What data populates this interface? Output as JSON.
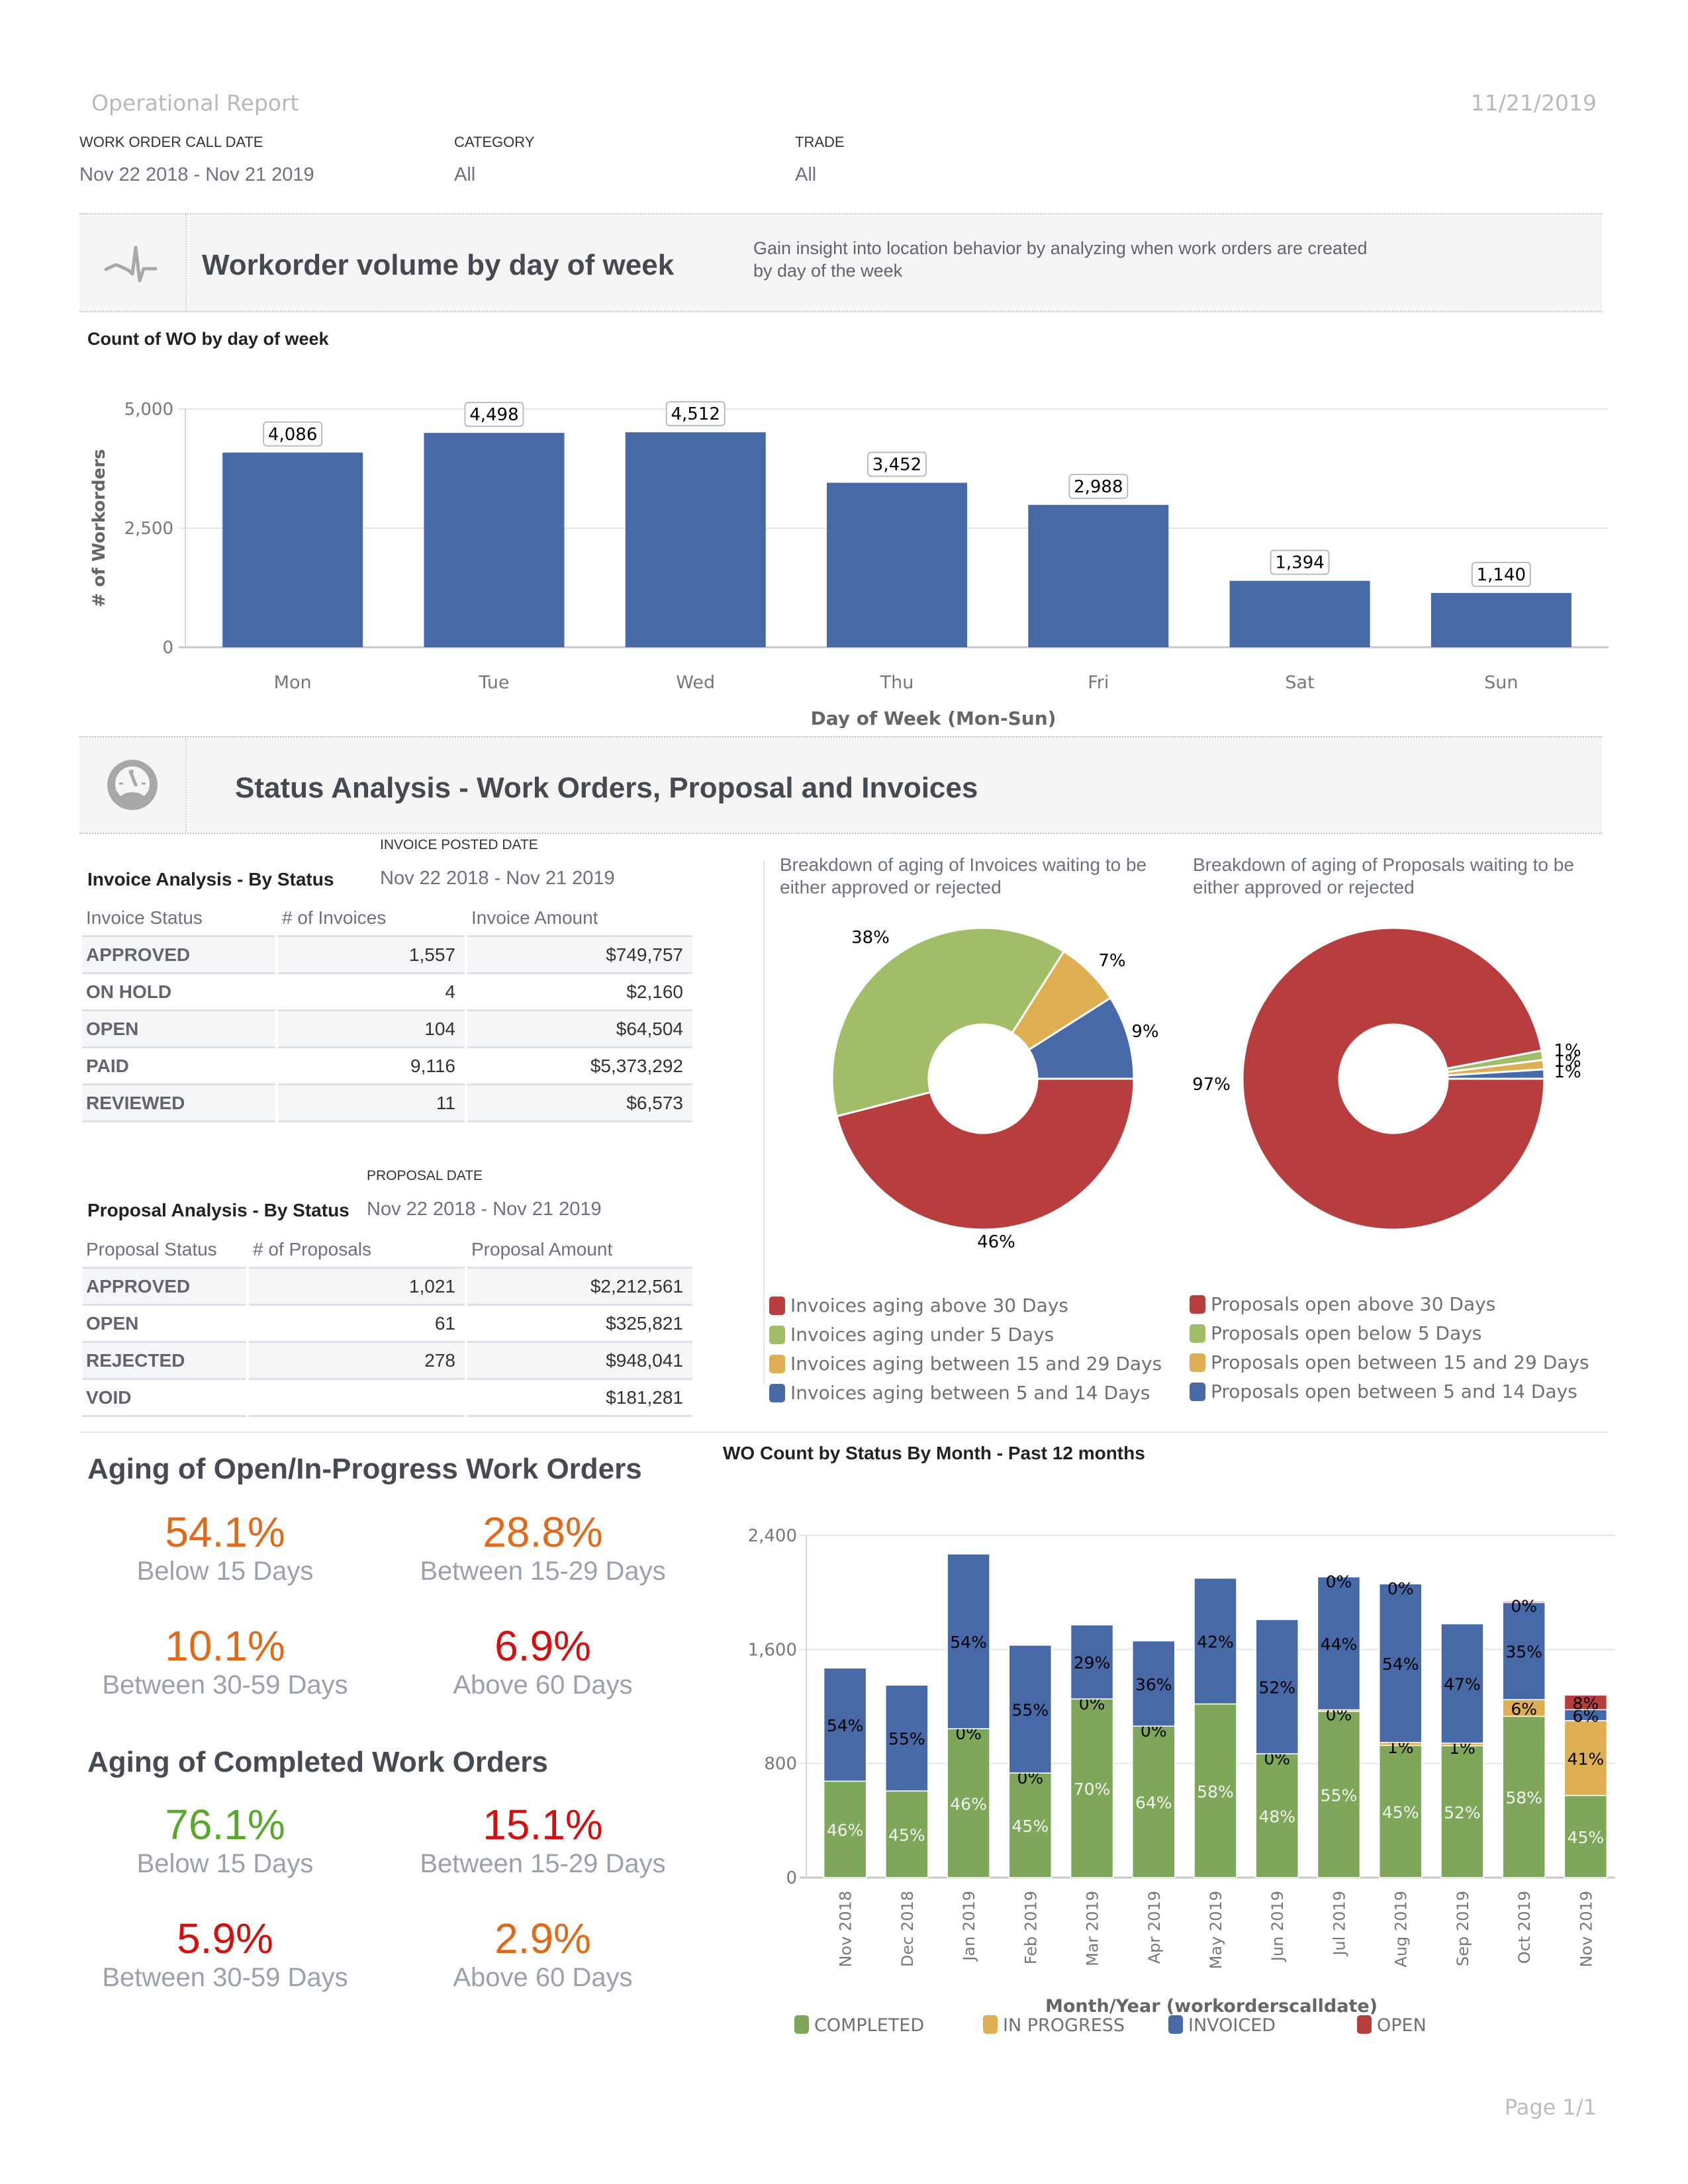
{
  "header": {
    "title": "Operational Report",
    "date": "11/21/2019",
    "filters": [
      {
        "label": "WORK ORDER CALL DATE",
        "value": "Nov 22 2018 - Nov 21 2019"
      },
      {
        "label": "CATEGORY",
        "value": "All"
      },
      {
        "label": "TRADE",
        "value": "All"
      }
    ]
  },
  "section1": {
    "icon": "heartbeat-icon",
    "title": "Workorder volume by day of week",
    "description_line1": "Gain insight into location behavior by analyzing when work orders are created",
    "description_line2": "by day of the week",
    "chart_subtitle": "Count of WO by day of week"
  },
  "section2": {
    "icon": "dashboard-gauge-icon",
    "title": "Status Analysis - Work Orders, Proposal and Invoices"
  },
  "invoice_table": {
    "caption": "INVOICE POSTED DATE",
    "title": "Invoice Analysis - By Status",
    "range": "Nov 22 2018 - Nov 21 2019",
    "columns": [
      "Invoice Status",
      "# of Invoices",
      "Invoice Amount"
    ],
    "rows": [
      [
        "APPROVED",
        "1,557",
        "$749,757"
      ],
      [
        "ON HOLD",
        "4",
        "$2,160"
      ],
      [
        "OPEN",
        "104",
        "$64,504"
      ],
      [
        "PAID",
        "9,116",
        "$5,373,292"
      ],
      [
        "REVIEWED",
        "11",
        "$6,573"
      ]
    ]
  },
  "proposal_table": {
    "caption": "PROPOSAL DATE",
    "title": "Proposal Analysis - By Status",
    "range": "Nov 22 2018 - Nov 21 2019",
    "columns": [
      "Proposal Status",
      "# of Proposals",
      "Proposal Amount"
    ],
    "rows": [
      [
        "APPROVED",
        "1,021",
        "$2,212,561"
      ],
      [
        "OPEN",
        "61",
        "$325,821"
      ],
      [
        "REJECTED",
        "278",
        "$948,041"
      ],
      [
        "VOID",
        "",
        "$181,281"
      ]
    ]
  },
  "aging_open": {
    "title": "Aging of Open/In-Progress Work Orders",
    "kpis": [
      {
        "value": "54.1%",
        "label": "Below 15 Days",
        "color": "#e0691a"
      },
      {
        "value": "28.8%",
        "label": "Between 15-29 Days",
        "color": "#e0691a"
      },
      {
        "value": "10.1%",
        "label": "Between 30-59 Days",
        "color": "#e0691a"
      },
      {
        "value": "6.9%",
        "label": "Above 60 Days",
        "color": "#d40f0f"
      }
    ]
  },
  "aging_completed": {
    "title": "Aging of Completed Work Orders",
    "kpis": [
      {
        "value": "76.1%",
        "label": "Below 15 Days",
        "color": "#5aa72e"
      },
      {
        "value": "15.1%",
        "label": "Between 15-29 Days",
        "color": "#d40f0f"
      },
      {
        "value": "5.9%",
        "label": "Between 30-59 Days",
        "color": "#d40f0f"
      },
      {
        "value": "2.9%",
        "label": "Above 60 Days",
        "color": "#e0691a"
      }
    ]
  },
  "colors": {
    "bar_blue": "#4769a8",
    "green": "#7fa75a",
    "yellow": "#ddae52",
    "red": "#b83d3d",
    "pie_green": "#a2bd67"
  },
  "footer": {
    "page": "Page 1/1"
  },
  "chart_data": [
    {
      "type": "bar",
      "title": "Count of WO by day of week",
      "categories": [
        "Mon",
        "Tue",
        "Wed",
        "Thu",
        "Fri",
        "Sat",
        "Sun"
      ],
      "values": [
        4086,
        4498,
        4512,
        3452,
        2988,
        1394,
        1140
      ],
      "value_labels": [
        "4,086",
        "4,498",
        "4,512",
        "3,452",
        "2,988",
        "1,394",
        "1,140"
      ],
      "xlabel": "Day of Week (Mon-Sun)",
      "ylabel": "# of Workorders",
      "ylim": [
        0,
        5000
      ],
      "yticks": [
        0,
        2500,
        5000
      ],
      "ytick_labels": [
        "0",
        "2,500",
        "5,000"
      ],
      "grid": true
    },
    {
      "type": "pie",
      "donut": true,
      "title": "Breakdown of aging of Invoices waiting to be either approved or rejected",
      "slices": [
        {
          "label": "Invoices aging between 5 and 14 Days",
          "value": 9,
          "color": "#4769a8"
        },
        {
          "label": "Invoices aging between 15 and 29 Days",
          "value": 7,
          "color": "#ddae52"
        },
        {
          "label": "Invoices aging under 5 Days",
          "value": 38,
          "color": "#a2bd67"
        },
        {
          "label": "Invoices aging above 30 Days",
          "value": 46,
          "color": "#b83d3d"
        }
      ],
      "legend": [
        "Invoices aging above 30 Days",
        "Invoices aging under 5 Days",
        "Invoices aging between 15 and 29 Days",
        "Invoices aging between 5 and 14 Days"
      ],
      "legend_colors": [
        "#b83d3d",
        "#a2bd67",
        "#ddae52",
        "#4769a8"
      ],
      "legend_position": "bottom"
    },
    {
      "type": "pie",
      "donut": true,
      "title": "Breakdown of aging of Proposals waiting to be either approved or rejected",
      "slices": [
        {
          "label": "Proposals open between 5 and 14 Days",
          "value": 1,
          "color": "#4769a8"
        },
        {
          "label": "Proposals open between 15 and 29 Days",
          "value": 1,
          "color": "#ddae52"
        },
        {
          "label": "Proposals open below 5 Days",
          "value": 1,
          "color": "#a2bd67"
        },
        {
          "label": "Proposals open above 30 Days",
          "value": 97,
          "color": "#b83d3d"
        }
      ],
      "legend": [
        "Proposals open above 30 Days",
        "Proposals open below 5 Days",
        "Proposals open between 15 and 29 Days",
        "Proposals open between 5 and 14 Days"
      ],
      "legend_colors": [
        "#b83d3d",
        "#a2bd67",
        "#ddae52",
        "#4769a8"
      ],
      "legend_position": "bottom"
    },
    {
      "type": "bar",
      "stacked": true,
      "title": "WO Count by Status By Month - Past 12 months",
      "categories": [
        "Nov 2018",
        "Dec 2018",
        "Jan 2019",
        "Feb 2019",
        "Mar 2019",
        "Apr 2019",
        "May 2019",
        "Jun 2019",
        "Jul 2019",
        "Aug 2019",
        "Sep 2019",
        "Oct 2019",
        "Nov 2019"
      ],
      "xlabel": "Month/Year (workorderscalldate)",
      "ylabel": "",
      "ylim": [
        0,
        2400
      ],
      "yticks": [
        0,
        800,
        1600,
        2400
      ],
      "ytick_labels": [
        "0",
        "800",
        "1,600",
        "2,400"
      ],
      "totals": [
        1470,
        1350,
        2270,
        1630,
        1790,
        1660,
        2100,
        1810,
        2120,
        2060,
        1780,
        1950,
        1280
      ],
      "series": [
        {
          "name": "COMPLETED",
          "color": "#7fa75a",
          "percent": [
            46,
            45,
            46,
            45,
            70,
            64,
            58,
            48,
            55,
            45,
            52,
            58,
            45
          ],
          "labels": [
            "46%",
            "45%",
            "46%",
            "45%",
            "70%",
            "64%",
            "58%",
            "48%",
            "55%",
            "45%",
            "52%",
            "58%",
            "45%"
          ]
        },
        {
          "name": "IN PROGRESS",
          "color": "#ddae52",
          "percent": [
            0,
            0,
            0,
            0,
            0,
            0,
            0,
            0,
            0.5,
            1,
            1,
            6,
            41
          ],
          "labels": [
            "",
            "",
            "0%",
            "0%",
            "0%",
            "0%",
            "",
            "0%",
            "0%",
            "1%",
            "1%",
            "6%",
            "41%"
          ]
        },
        {
          "name": "INVOICED",
          "color": "#4769a8",
          "percent": [
            54,
            55,
            54,
            55,
            29,
            36,
            42,
            52,
            44,
            54,
            47,
            35,
            6
          ],
          "labels": [
            "54%",
            "55%",
            "54%",
            "55%",
            "29%",
            "36%",
            "42%",
            "52%",
            "44%",
            "54%",
            "47%",
            "35%",
            "6%"
          ]
        },
        {
          "name": "OPEN",
          "color": "#b83d3d",
          "percent": [
            0,
            0,
            0,
            0,
            0,
            0,
            0,
            0,
            0,
            0,
            0,
            0.4,
            8
          ],
          "labels": [
            "",
            "",
            "",
            "",
            "",
            "",
            "",
            "",
            "0%",
            "0%",
            "",
            "0%",
            "8%"
          ]
        }
      ],
      "legend": [
        "COMPLETED",
        "IN PROGRESS",
        "INVOICED",
        "OPEN"
      ],
      "legend_position": "bottom",
      "grid": true
    }
  ]
}
